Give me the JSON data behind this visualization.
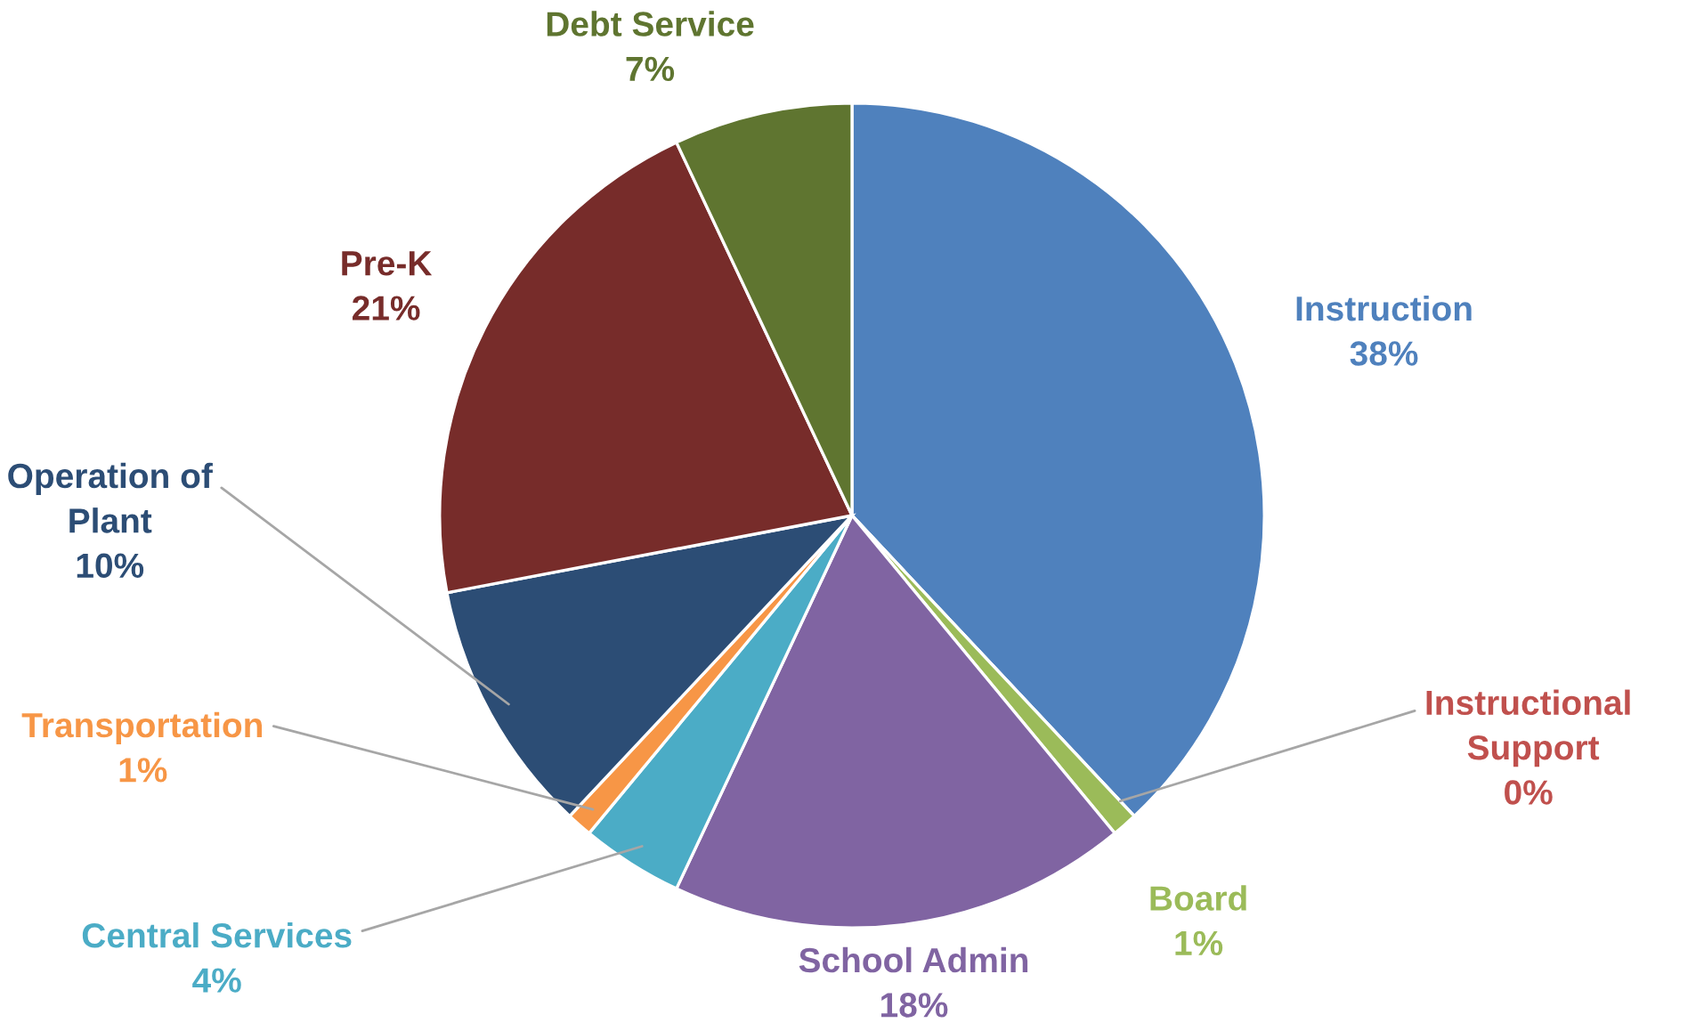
{
  "chart_data": {
    "type": "pie",
    "categories": [
      "Instruction",
      "Instructional Support",
      "Board",
      "School Admin",
      "Central Services",
      "Transportation",
      "Operation of Plant",
      "Pre-K",
      "Debt Service"
    ],
    "values": [
      38,
      0,
      1,
      18,
      4,
      1,
      10,
      21,
      7
    ],
    "colors": [
      "#4f81bd",
      "#c0504d",
      "#9bbb59",
      "#8064a2",
      "#4bacc6",
      "#f79646",
      "#2c4d75",
      "#772c2a",
      "#5f7530"
    ],
    "value_labels": [
      "38%",
      "0%",
      "1%",
      "18%",
      "4%",
      "1%",
      "10%",
      "21%",
      "7%"
    ]
  }
}
